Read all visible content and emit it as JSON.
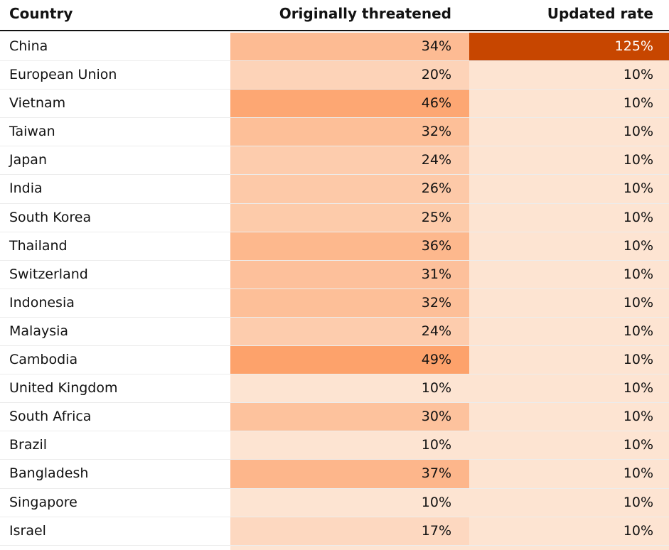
{
  "chart_data": {
    "type": "table",
    "columns": [
      "Country",
      "Originally threatened",
      "Updated rate"
    ],
    "rows": [
      {
        "country": "China",
        "original": 34,
        "updated": 125
      },
      {
        "country": "European Union",
        "original": 20,
        "updated": 10
      },
      {
        "country": "Vietnam",
        "original": 46,
        "updated": 10
      },
      {
        "country": "Taiwan",
        "original": 32,
        "updated": 10
      },
      {
        "country": "Japan",
        "original": 24,
        "updated": 10
      },
      {
        "country": "India",
        "original": 26,
        "updated": 10
      },
      {
        "country": "South Korea",
        "original": 25,
        "updated": 10
      },
      {
        "country": "Thailand",
        "original": 36,
        "updated": 10
      },
      {
        "country": "Switzerland",
        "original": 31,
        "updated": 10
      },
      {
        "country": "Indonesia",
        "original": 32,
        "updated": 10
      },
      {
        "country": "Malaysia",
        "original": 24,
        "updated": 10
      },
      {
        "country": "Cambodia",
        "original": 49,
        "updated": 10
      },
      {
        "country": "United Kingdom",
        "original": 10,
        "updated": 10
      },
      {
        "country": "South Africa",
        "original": 30,
        "updated": 10
      },
      {
        "country": "Brazil",
        "original": 10,
        "updated": 10
      },
      {
        "country": "Bangladesh",
        "original": 37,
        "updated": 10
      },
      {
        "country": "Singapore",
        "original": 10,
        "updated": 10
      },
      {
        "country": "Israel",
        "original": 17,
        "updated": 10
      }
    ],
    "value_suffix": "%",
    "color_scale": {
      "low": "#fde4d2",
      "high": "#fda26b",
      "max": "#c74600",
      "text_on_max": "#ffffff"
    }
  }
}
